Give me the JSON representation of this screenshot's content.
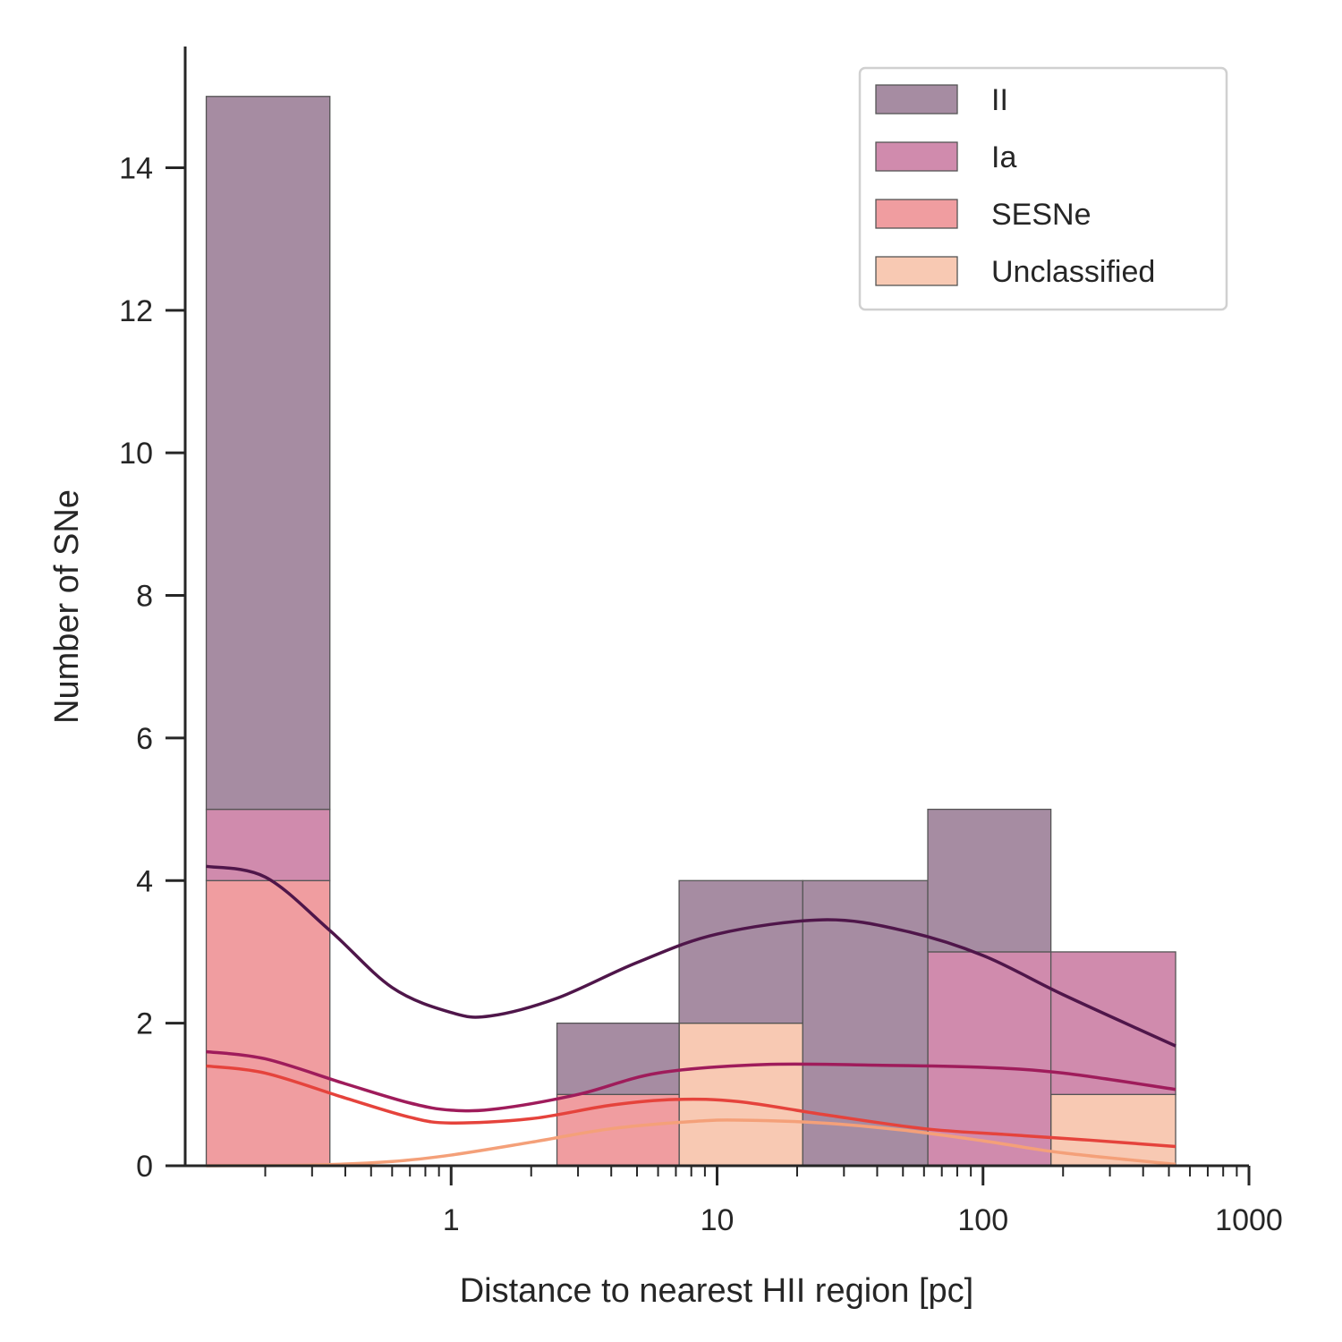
{
  "chart_data": {
    "type": "bar",
    "subtype": "stacked-histogram-with-kde",
    "title": "",
    "xlabel": "Distance to nearest HII region [pc]",
    "ylabel": "Number of SNe",
    "xscale": "log",
    "xlim": [
      0.1,
      1000
    ],
    "ylim": [
      0,
      15.7
    ],
    "x_ticks": [
      1,
      10,
      100,
      1000
    ],
    "x_tick_labels": [
      "1",
      "10",
      "100",
      "1000"
    ],
    "y_ticks": [
      0,
      2,
      4,
      6,
      8,
      10,
      12,
      14
    ],
    "y_tick_labels": [
      "0",
      "2",
      "4",
      "6",
      "8",
      "10",
      "12",
      "14"
    ],
    "grid": false,
    "legend_position": "top-right",
    "bin_edges": [
      0.12,
      0.35,
      2.5,
      7.2,
      21,
      62,
      180,
      530
    ],
    "series": [
      {
        "name": "II",
        "color": "#a68ca2",
        "counts": [
          10,
          0,
          1,
          2,
          4,
          2,
          0
        ],
        "kde_color": "#4f164a",
        "kde": [
          [
            0.12,
            4.2
          ],
          [
            0.2,
            4.05
          ],
          [
            0.35,
            3.3
          ],
          [
            0.6,
            2.5
          ],
          [
            1.0,
            2.15
          ],
          [
            1.4,
            2.1
          ],
          [
            2.5,
            2.35
          ],
          [
            5,
            2.85
          ],
          [
            10,
            3.25
          ],
          [
            25,
            3.45
          ],
          [
            50,
            3.3
          ],
          [
            100,
            2.95
          ],
          [
            200,
            2.4
          ],
          [
            530,
            1.68
          ]
        ]
      },
      {
        "name": "Ia",
        "color": "#d08bad",
        "counts": [
          1,
          0,
          0,
          0,
          0,
          3,
          2
        ],
        "kde_color": "#9f1c5b",
        "kde": [
          [
            0.12,
            1.6
          ],
          [
            0.2,
            1.5
          ],
          [
            0.4,
            1.15
          ],
          [
            0.7,
            0.88
          ],
          [
            1.0,
            0.78
          ],
          [
            1.5,
            0.8
          ],
          [
            3,
            1.0
          ],
          [
            6,
            1.3
          ],
          [
            15,
            1.42
          ],
          [
            40,
            1.41
          ],
          [
            100,
            1.38
          ],
          [
            200,
            1.3
          ],
          [
            530,
            1.07
          ]
        ]
      },
      {
        "name": "SESNe",
        "color": "#f09da0",
        "counts": [
          4,
          0,
          1,
          0,
          0,
          0,
          0
        ],
        "kde_color": "#e5433c",
        "kde": [
          [
            0.12,
            1.4
          ],
          [
            0.2,
            1.3
          ],
          [
            0.4,
            0.95
          ],
          [
            0.7,
            0.68
          ],
          [
            1.0,
            0.6
          ],
          [
            2,
            0.66
          ],
          [
            4,
            0.85
          ],
          [
            7,
            0.93
          ],
          [
            12,
            0.9
          ],
          [
            25,
            0.72
          ],
          [
            60,
            0.52
          ],
          [
            120,
            0.44
          ],
          [
            250,
            0.36
          ],
          [
            530,
            0.27
          ]
        ]
      },
      {
        "name": "Unclassified",
        "color": "#f8c9b3",
        "counts": [
          0,
          0,
          0,
          2,
          0,
          0,
          1
        ],
        "kde_color": "#f4a079",
        "kde": [
          [
            0.12,
            0.0
          ],
          [
            0.3,
            0.01
          ],
          [
            0.6,
            0.06
          ],
          [
            1.0,
            0.15
          ],
          [
            2,
            0.33
          ],
          [
            4,
            0.52
          ],
          [
            8,
            0.62
          ],
          [
            12,
            0.64
          ],
          [
            25,
            0.6
          ],
          [
            50,
            0.5
          ],
          [
            100,
            0.35
          ],
          [
            200,
            0.18
          ],
          [
            530,
            0.02
          ]
        ]
      }
    ]
  }
}
